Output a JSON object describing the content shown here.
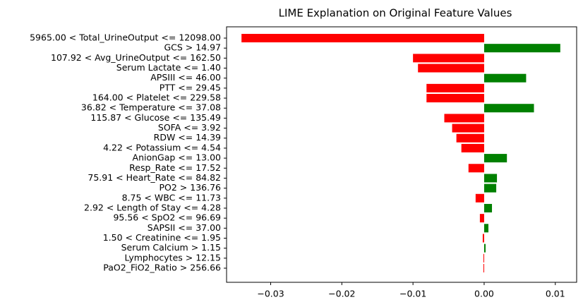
{
  "chart_data": {
    "type": "barh",
    "title": "LIME Explanation on Original Feature Values",
    "categories": [
      "5965.00 < Total_UrineOutput <= 12098.00",
      "GCS > 14.97",
      "107.92 < Avg_UrineOutput <= 162.50",
      "Serum Lactate <= 1.40",
      "APSIII <= 46.00",
      "PTT <= 29.45",
      "164.00 < Platelet <= 229.58",
      "36.82 < Temperature <= 37.08",
      "115.87 < Glucose <= 135.49",
      "SOFA <= 3.92",
      "RDW <= 14.39",
      "4.22 < Potassium <= 4.54",
      "AnionGap <= 13.00",
      "Resp_Rate <= 17.52",
      "75.91 < Heart_Rate <= 84.82",
      "PO2 > 136.76",
      "8.75 < WBC <= 11.73",
      "2.92 < Length of Stay <= 4.28",
      "95.56 < SpO2 <= 96.69",
      "SAPSII <= 37.00",
      "1.50 < Creatinine <= 1.95",
      "Serum Calcium > 1.15",
      "Lymphocytes > 12.15",
      "PaO2_FiO2_Ratio > 256.66"
    ],
    "values": [
      -0.0341,
      0.0107,
      -0.01,
      -0.0093,
      0.0059,
      -0.0081,
      -0.0081,
      0.007,
      -0.0056,
      -0.0045,
      -0.0039,
      -0.0032,
      0.0032,
      -0.0022,
      0.0018,
      0.0017,
      -0.0012,
      0.0011,
      -0.0006,
      0.0006,
      -0.0002,
      0.0002,
      -0.0001,
      -0.0001
    ],
    "positive_color": "green",
    "negative_color": "red",
    "xlim": [
      -0.0362,
      0.013
    ],
    "xticks": [
      {
        "value": -0.03,
        "label": "−0.03"
      },
      {
        "value": -0.02,
        "label": "−0.02"
      },
      {
        "value": -0.01,
        "label": "−0.01"
      },
      {
        "value": 0,
        "label": "0.00"
      },
      {
        "value": 0.01,
        "label": "0.01"
      }
    ]
  }
}
